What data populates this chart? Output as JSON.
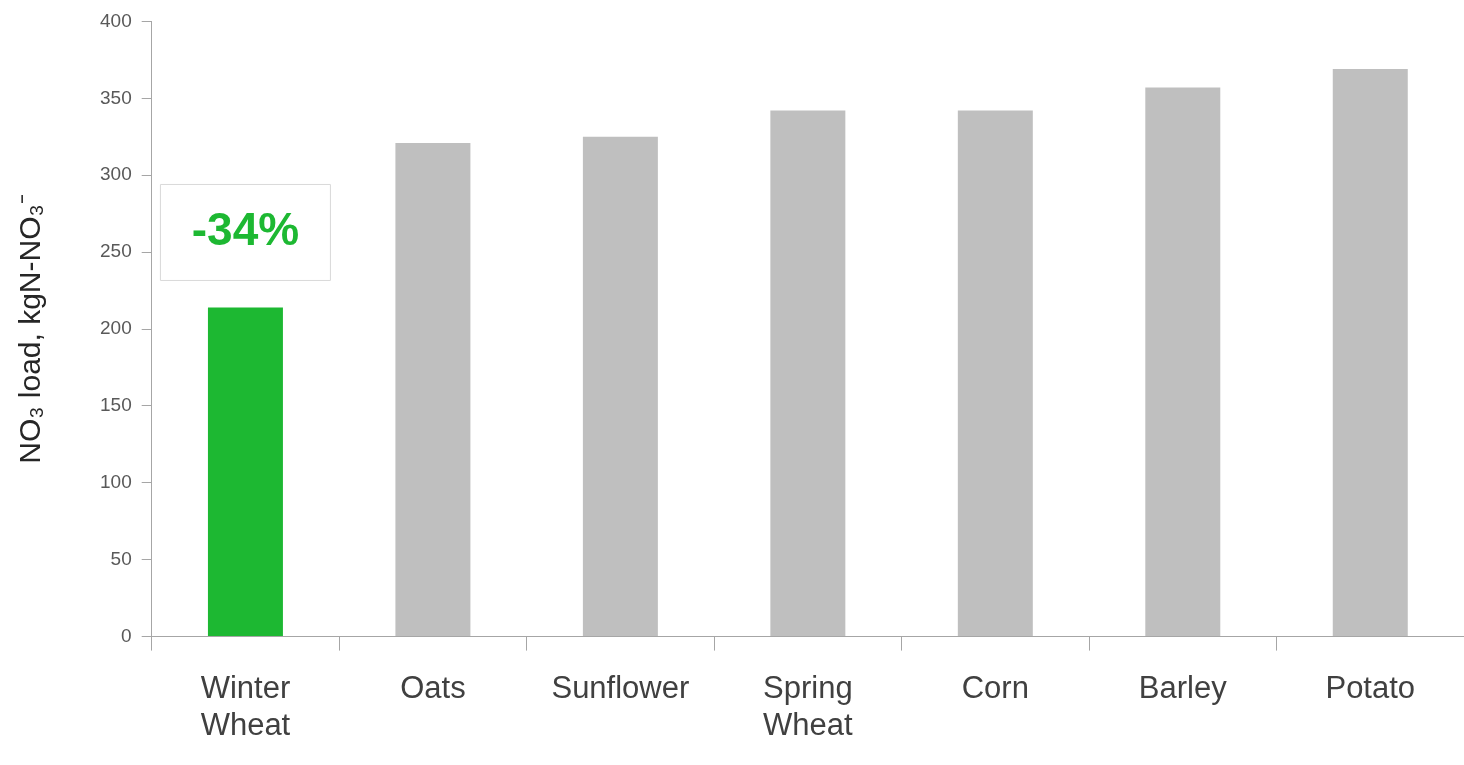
{
  "chart_data": {
    "type": "bar",
    "ylabel": "NO₃ load, kgN-NO₃⁻",
    "categories": [
      "Winter Wheat",
      "Oats",
      "Sunflower",
      "Spring Wheat",
      "Corn",
      "Barley",
      "Potato"
    ],
    "values": [
      214,
      321,
      325,
      342,
      342,
      357,
      369
    ],
    "colors": [
      "#1db832",
      "#bfbfbf",
      "#bfbfbf",
      "#bfbfbf",
      "#bfbfbf",
      "#bfbfbf",
      "#bfbfbf"
    ],
    "ylim": [
      0,
      400
    ],
    "yticks": [
      0,
      50,
      100,
      150,
      200,
      250,
      300,
      350,
      400
    ],
    "grid": false,
    "annotations": [
      "-34%"
    ]
  }
}
